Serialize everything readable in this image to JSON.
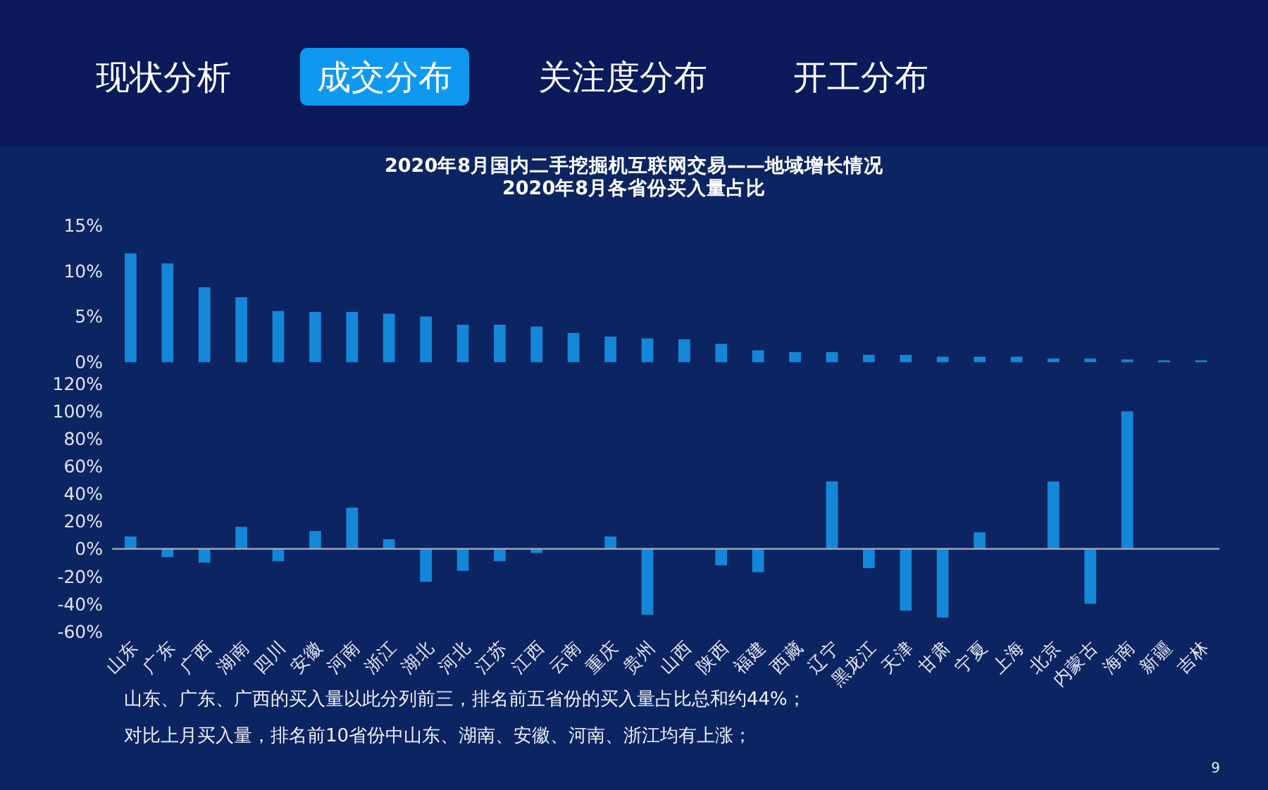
{
  "chart_data": [
    {
      "type": "bar",
      "title": "2020年8月国内二手挖掘机互联网交易——地域增长情况",
      "subtitle": "2020年8月各省份买入量占比",
      "categories": [
        "山东",
        "广东",
        "广西",
        "湖南",
        "四川",
        "安徽",
        "河南",
        "浙江",
        "湖北",
        "河北",
        "江苏",
        "江西",
        "云南",
        "重庆",
        "贵州",
        "山西",
        "陕西",
        "福建",
        "西藏",
        "辽宁",
        "黑龙江",
        "天津",
        "甘肃",
        "宁夏",
        "上海",
        "北京",
        "内蒙古",
        "海南",
        "新疆",
        "吉林"
      ],
      "values": [
        11.9,
        10.8,
        8.2,
        7.1,
        5.6,
        5.5,
        5.5,
        5.3,
        5.0,
        4.1,
        4.1,
        3.9,
        3.2,
        2.8,
        2.6,
        2.5,
        2.0,
        1.3,
        1.1,
        1.1,
        0.8,
        0.8,
        0.6,
        0.6,
        0.6,
        0.4,
        0.4,
        0.3,
        0.2,
        0.2
      ],
      "color": "#1587d9",
      "ylim": [
        0,
        15
      ],
      "yticks": [
        {
          "value": 0,
          "label": "0%"
        },
        {
          "value": 5,
          "label": "5%"
        },
        {
          "value": 10,
          "label": "10%"
        },
        {
          "value": 15,
          "label": "15%"
        }
      ],
      "tick_labels": "y",
      "annotations": [
        "现状分析",
        "成交分布",
        "关注度分布",
        "开工分布"
      ]
    },
    {
      "type": "bar",
      "categories": [
        "山东",
        "广东",
        "广西",
        "湖南",
        "四川",
        "安徽",
        "河南",
        "浙江",
        "湖北",
        "河北",
        "江苏",
        "江西",
        "云南",
        "重庆",
        "贵州",
        "山西",
        "陕西",
        "福建",
        "西藏",
        "辽宁",
        "黑龙江",
        "天津",
        "甘肃",
        "宁夏",
        "上海",
        "北京",
        "内蒙古",
        "海南",
        "新疆",
        "吉林"
      ],
      "values": [
        9,
        -6,
        -10,
        16,
        -9,
        13,
        30,
        7,
        -24,
        -16,
        -9,
        -3,
        null,
        9,
        -48,
        null,
        -12,
        -17,
        null,
        49,
        -14,
        -45,
        -50,
        12,
        null,
        49,
        -40,
        100,
        null,
        null
      ],
      "color": "#1587d9",
      "ylim": [
        -60,
        120
      ],
      "yticks": [
        {
          "value": -60,
          "label": "-60%"
        },
        {
          "value": -40,
          "label": "-40%"
        },
        {
          "value": -20,
          "label": "-20%"
        },
        {
          "value": 0,
          "label": "0%"
        },
        {
          "value": 20,
          "label": "20%"
        },
        {
          "value": 40,
          "label": "40%"
        },
        {
          "value": 60,
          "label": "60%"
        },
        {
          "value": 80,
          "label": "80%"
        },
        {
          "value": 100,
          "label": "100%"
        },
        {
          "value": 120,
          "label": "120%"
        }
      ],
      "annotations": [
        "山东、广东、广西的买入量以此分列前三，排名前五省份的买入量占比总和约44%；",
        "对比上月买入量，排名前10省份中山东、湖南、安徽、河南、浙江均有上涨；",
        "9"
      ]
    }
  ]
}
